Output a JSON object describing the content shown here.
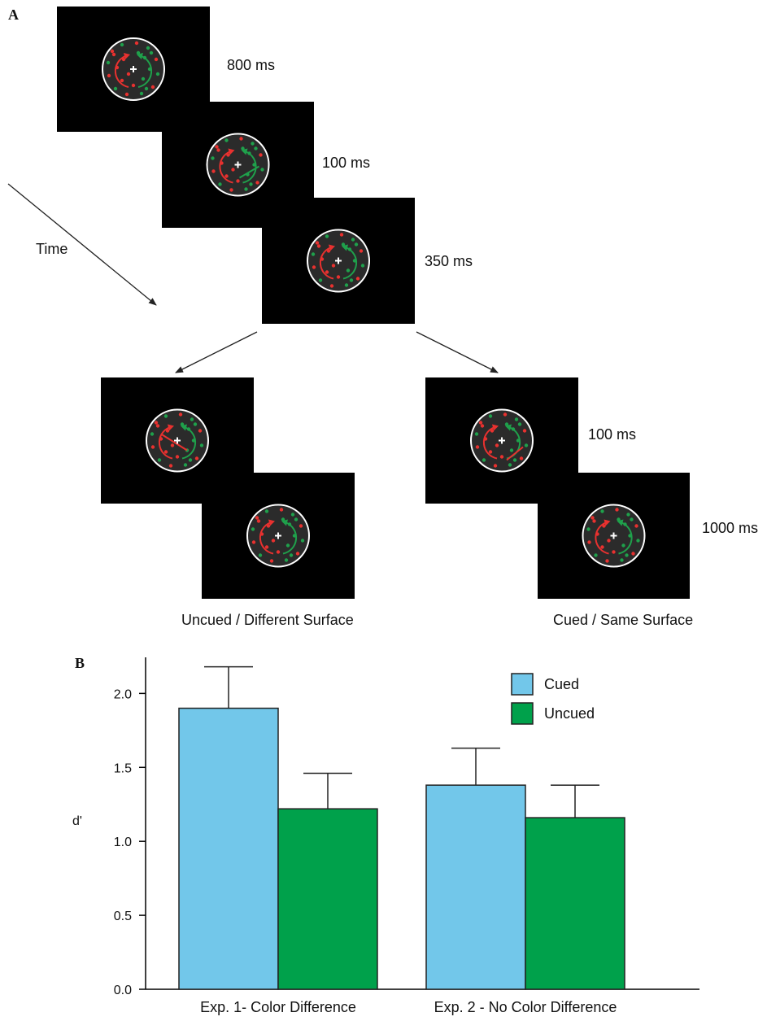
{
  "panel_a": {
    "label": "A",
    "time_label": "Time",
    "frames": [
      {
        "id": "f1",
        "duration": "800 ms"
      },
      {
        "id": "f2",
        "duration": "100 ms"
      },
      {
        "id": "f3",
        "duration": "350 ms"
      },
      {
        "id": "f4",
        "duration": ""
      },
      {
        "id": "f5",
        "duration": ""
      },
      {
        "id": "f6",
        "duration": "100 ms"
      },
      {
        "id": "f7",
        "duration": "1000 ms"
      }
    ],
    "conditions": {
      "left": "Uncued / Different Surface",
      "right": "Cued / Same Surface"
    },
    "colors": {
      "background": "#000000",
      "red_dots": "#e8312f",
      "green_dots": "#1fa04b",
      "aperture": "#ffffff"
    }
  },
  "panel_b": {
    "label": "B"
  },
  "chart_data": {
    "type": "bar",
    "title": "",
    "xlabel": "",
    "ylabel": "d'",
    "ylim": [
      0,
      2.2
    ],
    "yticks": [
      "0.0",
      "0.5",
      "1.0",
      "1.5",
      "2.0"
    ],
    "categories": [
      "Exp. 1- Color Difference",
      "Exp. 2 - No Color Difference"
    ],
    "series": [
      {
        "name": "Cued",
        "color": "#72c7ea",
        "values": [
          1.9,
          1.38
        ],
        "errors": [
          0.28,
          0.25
        ]
      },
      {
        "name": "Uncued",
        "color": "#00a14b",
        "values": [
          1.22,
          1.16
        ],
        "errors": [
          0.24,
          0.22
        ]
      }
    ],
    "legend_position": "top-right",
    "grid": false
  }
}
